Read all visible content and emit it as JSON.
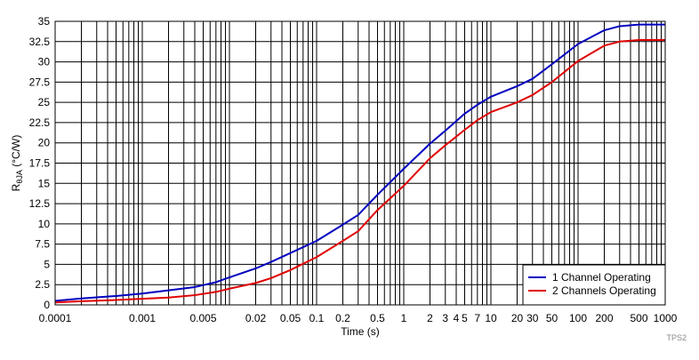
{
  "chart_data": {
    "type": "line",
    "xscale": "log",
    "xlim": [
      0.0001,
      1000
    ],
    "ylim": [
      0,
      35
    ],
    "xlabel": "Time (s)",
    "ylabel_main": "R",
    "ylabel_sub": "θJA",
    "ylabel_unit": " (°C/W)",
    "grid": true,
    "legend_position": "bottom-right",
    "x_ticks": [
      {
        "value": 0.0001,
        "label": "0.0001"
      },
      {
        "value": 0.001,
        "label": "0.001"
      },
      {
        "value": 0.005,
        "label": "0.005"
      },
      {
        "value": 0.02,
        "label": "0.02"
      },
      {
        "value": 0.05,
        "label": "0.05"
      },
      {
        "value": 0.1,
        "label": "0.1"
      },
      {
        "value": 0.2,
        "label": "0.2"
      },
      {
        "value": 0.5,
        "label": "0.5"
      },
      {
        "value": 1,
        "label": "1"
      },
      {
        "value": 2,
        "label": "2"
      },
      {
        "value": 3,
        "label": "3"
      },
      {
        "value": 4,
        "label": "4"
      },
      {
        "value": 5,
        "label": "5"
      },
      {
        "value": 7,
        "label": "7"
      },
      {
        "value": 10,
        "label": "10"
      },
      {
        "value": 20,
        "label": "20"
      },
      {
        "value": 30,
        "label": "30"
      },
      {
        "value": 50,
        "label": "50"
      },
      {
        "value": 100,
        "label": "100"
      },
      {
        "value": 200,
        "label": "200"
      },
      {
        "value": 500,
        "label": "500"
      },
      {
        "value": 1000,
        "label": "1000"
      }
    ],
    "y_ticks": [
      {
        "value": 0,
        "label": "0"
      },
      {
        "value": 2.5,
        "label": "2.5"
      },
      {
        "value": 5,
        "label": "5"
      },
      {
        "value": 7.5,
        "label": "7.5"
      },
      {
        "value": 10,
        "label": "10"
      },
      {
        "value": 12.5,
        "label": "12.5"
      },
      {
        "value": 15,
        "label": "15"
      },
      {
        "value": 17.5,
        "label": "17.5"
      },
      {
        "value": 20,
        "label": "20"
      },
      {
        "value": 22.5,
        "label": "22.5"
      },
      {
        "value": 25,
        "label": "25"
      },
      {
        "value": 27.5,
        "label": "27.5"
      },
      {
        "value": 30,
        "label": "30"
      },
      {
        "value": 32.5,
        "label": "32.5"
      },
      {
        "value": 35,
        "label": "35"
      }
    ],
    "series": [
      {
        "name": "1 Channel Operating",
        "color": "#0000c0",
        "points": [
          [
            0.0001,
            0.5
          ],
          [
            0.0002,
            0.8
          ],
          [
            0.0005,
            1.1
          ],
          [
            0.001,
            1.4
          ],
          [
            0.002,
            1.8
          ],
          [
            0.004,
            2.2
          ],
          [
            0.007,
            2.8
          ],
          [
            0.01,
            3.4
          ],
          [
            0.02,
            4.5
          ],
          [
            0.03,
            5.3
          ],
          [
            0.05,
            6.4
          ],
          [
            0.1,
            7.9
          ],
          [
            0.2,
            9.9
          ],
          [
            0.3,
            11.1
          ],
          [
            0.5,
            13.6
          ],
          [
            1,
            16.8
          ],
          [
            2,
            19.9
          ],
          [
            3,
            21.5
          ],
          [
            5,
            23.6
          ],
          [
            7,
            24.7
          ],
          [
            10,
            25.7
          ],
          [
            20,
            27.0
          ],
          [
            30,
            27.9
          ],
          [
            50,
            29.7
          ],
          [
            100,
            32.2
          ],
          [
            200,
            33.9
          ],
          [
            300,
            34.4
          ],
          [
            500,
            34.6
          ],
          [
            1000,
            34.6
          ]
        ]
      },
      {
        "name": "2 Channels Operating",
        "color": "#e00000",
        "points": [
          [
            0.0001,
            0.3
          ],
          [
            0.0002,
            0.45
          ],
          [
            0.0005,
            0.6
          ],
          [
            0.001,
            0.75
          ],
          [
            0.002,
            0.9
          ],
          [
            0.004,
            1.2
          ],
          [
            0.007,
            1.6
          ],
          [
            0.01,
            2.0
          ],
          [
            0.02,
            2.7
          ],
          [
            0.03,
            3.3
          ],
          [
            0.05,
            4.3
          ],
          [
            0.1,
            5.9
          ],
          [
            0.2,
            7.9
          ],
          [
            0.3,
            9.1
          ],
          [
            0.5,
            11.7
          ],
          [
            1,
            14.7
          ],
          [
            2,
            18.1
          ],
          [
            3,
            19.7
          ],
          [
            5,
            21.6
          ],
          [
            7,
            22.8
          ],
          [
            10,
            23.8
          ],
          [
            20,
            25.0
          ],
          [
            30,
            25.9
          ],
          [
            50,
            27.5
          ],
          [
            100,
            30.1
          ],
          [
            200,
            32.0
          ],
          [
            300,
            32.5
          ],
          [
            500,
            32.7
          ],
          [
            1000,
            32.7
          ]
        ]
      }
    ]
  },
  "figure_code": "TPS2"
}
